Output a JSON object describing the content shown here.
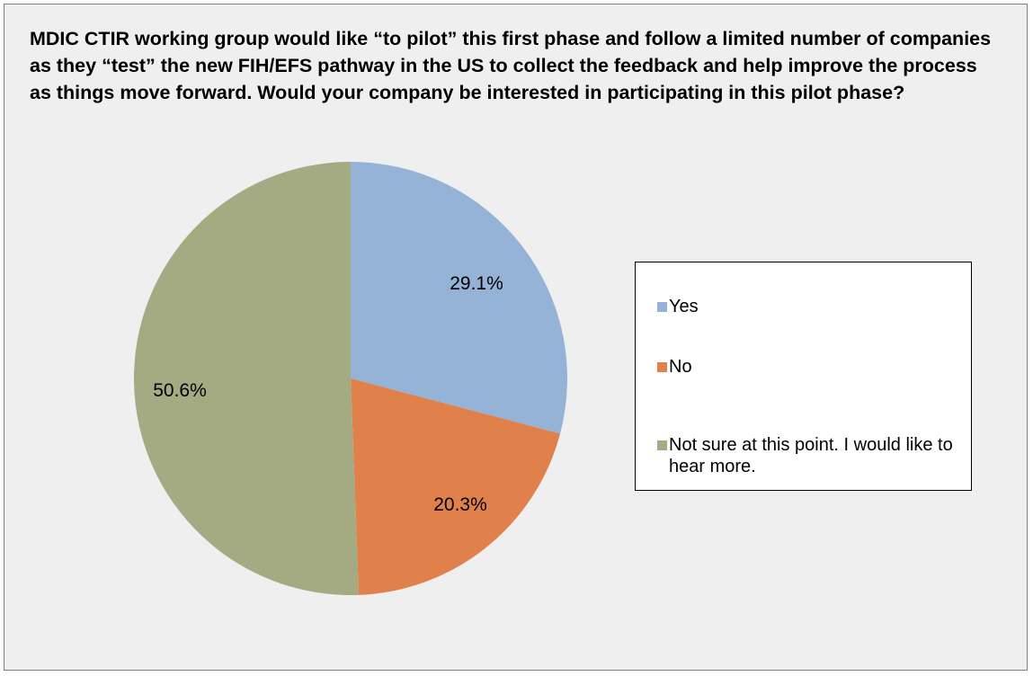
{
  "chart_data": {
    "type": "pie",
    "title": "MDIC CTIR working group would like “to pilot” this first phase and follow a limited number of companies as they “test” the new FIH/EFS pathway in the US to collect the feedback and help improve the process as things move forward. Would your company be interested in participating in this pilot phase?",
    "slices": [
      {
        "name": "Yes",
        "value": 29.1,
        "label": "29.1%",
        "color": "#95b3d7"
      },
      {
        "name": "No",
        "value": 20.3,
        "label": "20.3%",
        "color": "#e0804a"
      },
      {
        "name": "Not sure at this point. I would like to hear more.",
        "value": 50.6,
        "label": "50.6%",
        "color": "#a4ab82"
      }
    ],
    "legend_position": "right"
  }
}
